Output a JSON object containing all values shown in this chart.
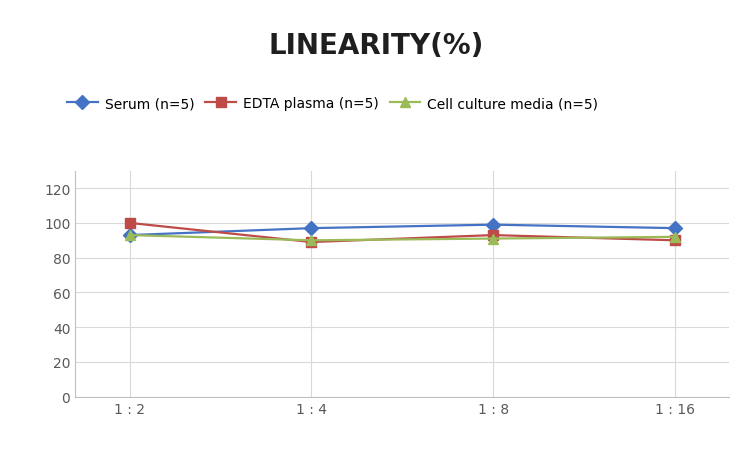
{
  "title": "LINEARITY(%)",
  "x_labels": [
    "1 : 2",
    "1 : 4",
    "1 : 8",
    "1 : 16"
  ],
  "x_positions": [
    0,
    1,
    2,
    3
  ],
  "series": [
    {
      "label": "Serum (n=5)",
      "values": [
        93,
        97,
        99,
        97
      ],
      "color": "#4472C4",
      "marker": "D",
      "marker_size": 7,
      "linewidth": 1.6
    },
    {
      "label": "EDTA plasma (n=5)",
      "values": [
        100,
        89,
        93,
        90
      ],
      "color": "#BE4B48",
      "marker": "s",
      "marker_size": 7,
      "linewidth": 1.6
    },
    {
      "label": "Cell culture media (n=5)",
      "values": [
        93,
        90,
        91,
        92
      ],
      "color": "#9BBB59",
      "marker": "^",
      "marker_size": 7,
      "linewidth": 1.6
    }
  ],
  "ylim": [
    0,
    130
  ],
  "yticks": [
    0,
    20,
    40,
    60,
    80,
    100,
    120
  ],
  "grid_color": "#D9D9D9",
  "background_color": "#FFFFFF",
  "title_fontsize": 20,
  "title_fontweight": "bold",
  "legend_fontsize": 10,
  "tick_fontsize": 10,
  "tick_color": "#595959"
}
